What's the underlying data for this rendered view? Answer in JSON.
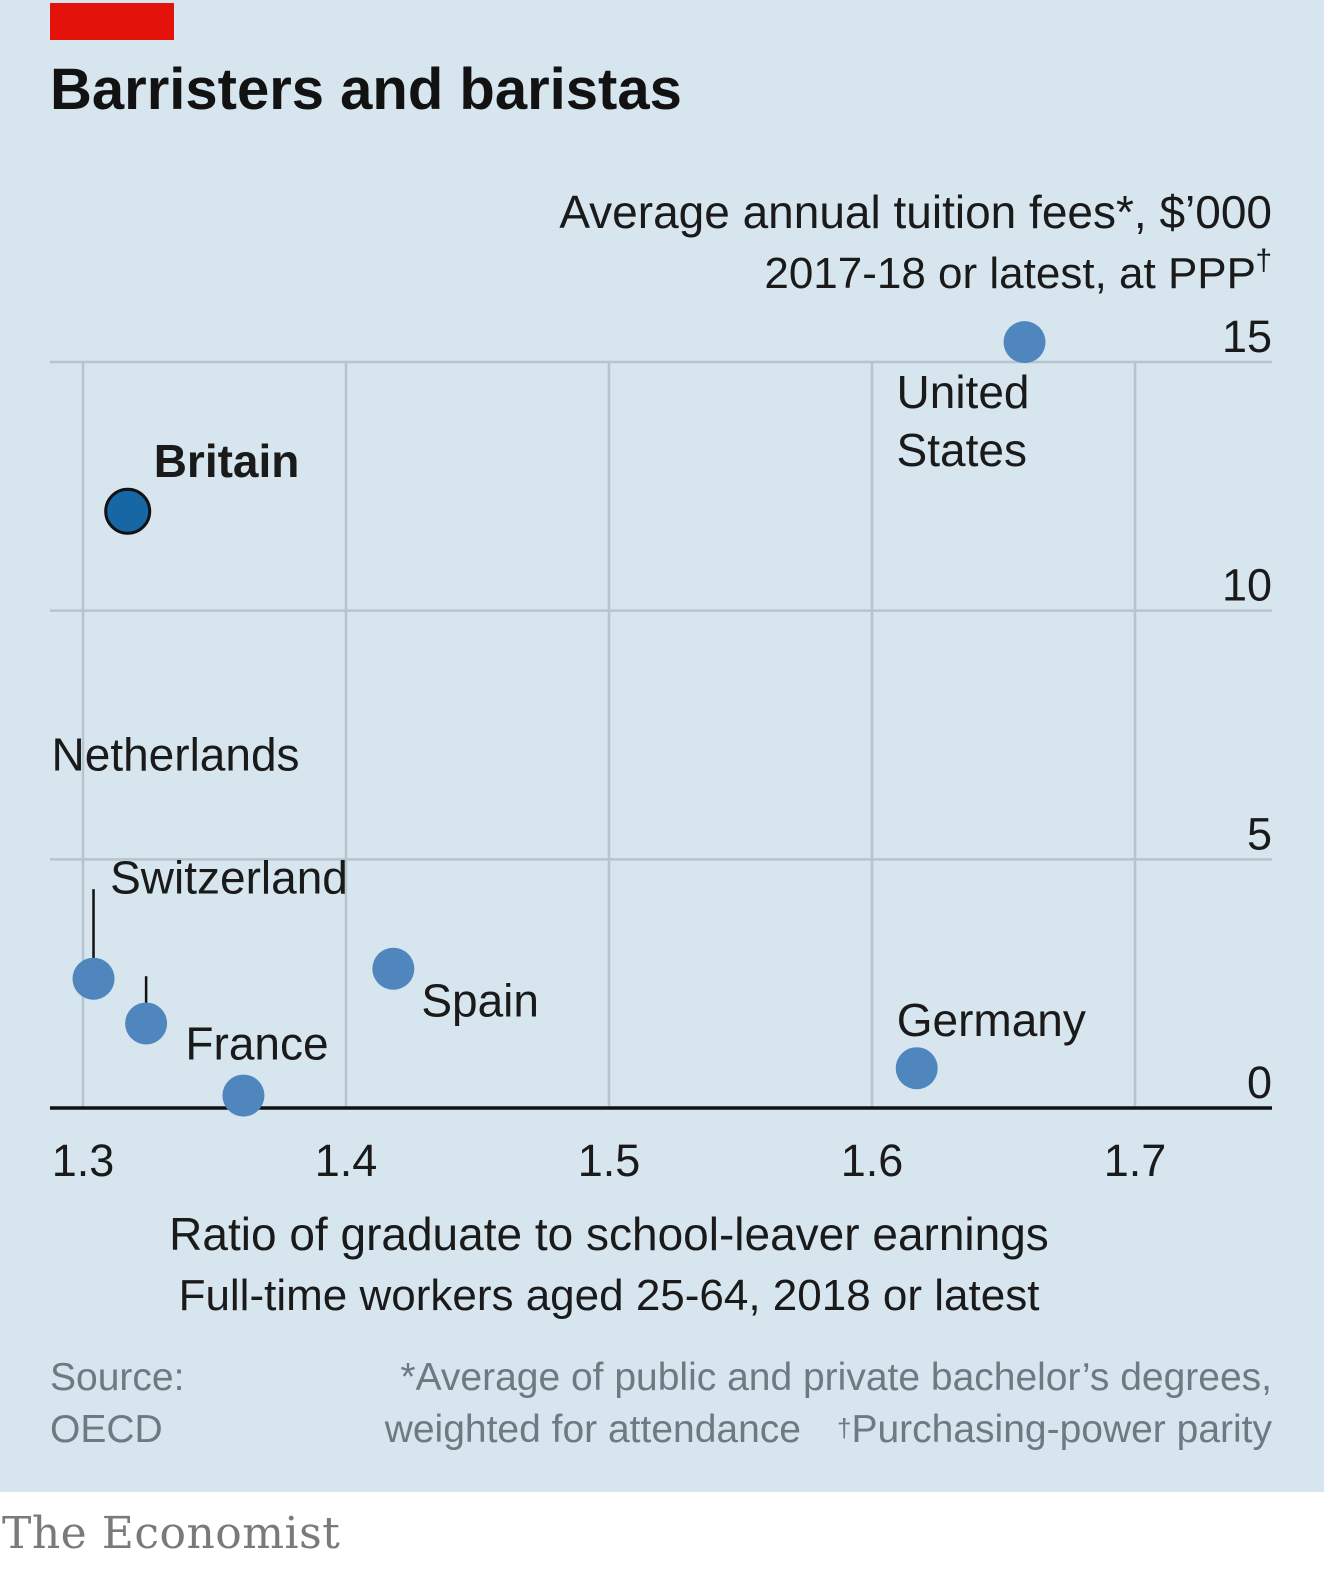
{
  "title": "Barristers and baristas",
  "source": {
    "label_line1": "Source:",
    "label_line2": "OECD",
    "footnote1": "*Average of public and private bachelor’s degrees,",
    "footnote2a": "weighted for attendance",
    "footnote2_dagger": "†",
    "footnote2b": "Purchasing-power parity"
  },
  "logo": "The Economist",
  "colors": {
    "accent": "#e3120b",
    "point": "#4f86bd",
    "highlight_point": "#1667a4",
    "background": "#d6e5ee"
  },
  "chart_data": {
    "type": "scatter",
    "title": "Barristers and baristas",
    "ylabel": "Average annual tuition fees*, $’000",
    "ylabel_sub": "2017-18 or latest, at PPP†",
    "xlabel": "Ratio of graduate to school-leaver earnings",
    "xlabel_sub": "Full-time workers aged 25-64, 2018 or latest",
    "xlim": [
      1.29,
      1.755
    ],
    "ylim": [
      0,
      15
    ],
    "x_ticks": [
      "1.3",
      "1.4",
      "1.5",
      "1.6",
      "1.7"
    ],
    "x_tick_values": [
      1.3,
      1.4,
      1.5,
      1.6,
      1.7
    ],
    "y_ticks": [
      "0",
      "5",
      "10",
      "15"
    ],
    "y_tick_values": [
      0,
      5,
      10,
      15
    ],
    "y_axis_position": "right",
    "grid": true,
    "points": [
      {
        "label_lines": [
          "United",
          "States"
        ],
        "x": 1.658,
        "y": 15.4,
        "highlight": false
      },
      {
        "label_lines": [
          "Britain"
        ],
        "x": 1.317,
        "y": 12.0,
        "highlight": true
      },
      {
        "label_lines": [
          "Netherlands"
        ],
        "x": 1.304,
        "y": 2.6,
        "highlight": false
      },
      {
        "label_lines": [
          "Switzerland"
        ],
        "x": 1.324,
        "y": 1.7,
        "highlight": false
      },
      {
        "label_lines": [
          "France"
        ],
        "x": 1.361,
        "y": 0.25,
        "highlight": false
      },
      {
        "label_lines": [
          "Spain"
        ],
        "x": 1.418,
        "y": 2.8,
        "highlight": false
      },
      {
        "label_lines": [
          "Germany"
        ],
        "x": 1.617,
        "y": 0.8,
        "highlight": false
      }
    ]
  }
}
